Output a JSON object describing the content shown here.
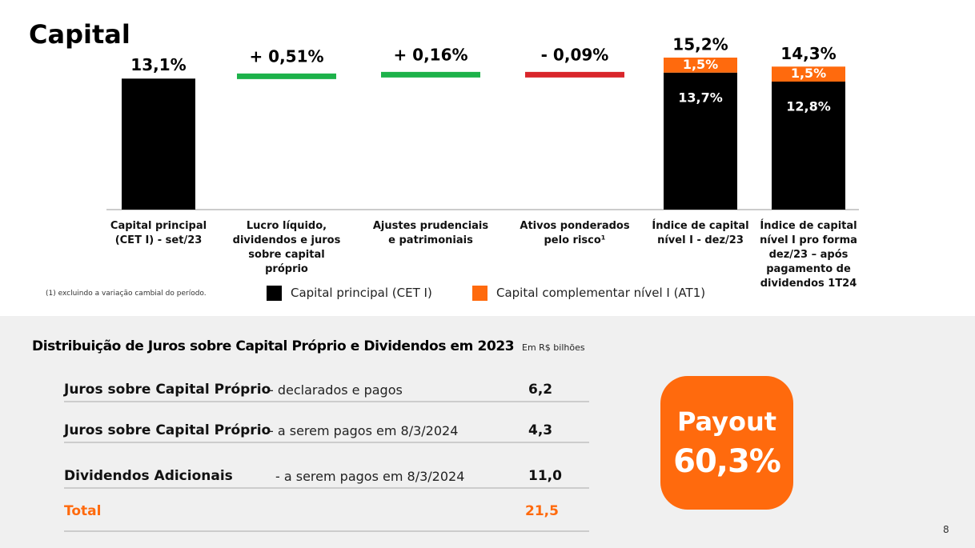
{
  "title": "Capital",
  "chart_data": {
    "type": "waterfall",
    "categories": [
      "Capital principal (CET I) - set/23",
      "Lucro líquido, dividendos e juros sobre capital próprio",
      "Ajustes prudenciais e patrimoniais",
      "Ativos ponderados pelo risco¹",
      "Índice de capital nível I - dez/23",
      "Índice de capital nível I pro forma dez/23 – após pagamento de dividendos 1T24"
    ],
    "series": [
      {
        "name": "Capital principal (CET I)",
        "color": "#000000",
        "values": [
          13.1,
          null,
          null,
          null,
          13.7,
          12.8
        ],
        "value_labels": [
          "13,1%",
          null,
          null,
          null,
          "13,7%",
          "12,8%"
        ]
      },
      {
        "name": "Capital complementar nível I (AT1)",
        "color": "#ff6a0d",
        "values": [
          null,
          null,
          null,
          null,
          1.5,
          1.5
        ],
        "value_labels": [
          null,
          null,
          null,
          null,
          "1,5%",
          "1,5%"
        ]
      }
    ],
    "changes": {
      "values": [
        null,
        0.51,
        0.16,
        -0.09,
        null,
        null
      ],
      "value_labels": [
        null,
        "+ 0,51%",
        "+ 0,16%",
        "- 0,09%",
        null,
        null
      ],
      "increase_color": "#1db24a",
      "decrease_color": "#d9262b"
    },
    "totals": {
      "values": [
        null,
        null,
        null,
        null,
        15.2,
        14.3
      ],
      "value_labels": [
        null,
        null,
        null,
        null,
        "15,2%",
        "14,3%"
      ]
    },
    "ylim": [
      0,
      16
    ]
  },
  "footnote": "(1) excluindo a variação cambial do período.",
  "table": {
    "title": "Distribuição de Juros sobre Capital Próprio e Dividendos em 2023",
    "unit": "Em R$ bilhões",
    "rows": [
      [
        "Juros sobre Capital Próprio",
        "- declarados e pagos",
        "6,2"
      ],
      [
        "Juros sobre Capital Próprio",
        "- a serem pagos em 8/3/2024",
        "4,3"
      ],
      [
        "Dividendos Adicionais",
        "- a serem pagos em 8/3/2024",
        "11,0"
      ]
    ],
    "total": [
      "Total",
      "21,5"
    ]
  },
  "payout": {
    "label": "Payout",
    "value": "60,3%"
  },
  "page_number": "8"
}
